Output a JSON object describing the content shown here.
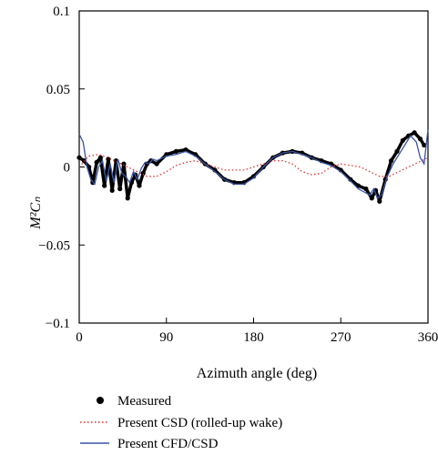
{
  "chart_data": {
    "type": "line",
    "xlabel": "Azimuth angle (deg)",
    "ylabel": "M²Cₙ",
    "xlim": [
      0,
      360
    ],
    "ylim": [
      -0.1,
      0.1
    ],
    "x_ticks": [
      0,
      90,
      180,
      270,
      360
    ],
    "x_tick_labels": [
      "0",
      "90",
      "180",
      "270",
      "360"
    ],
    "y_ticks": [
      0.1,
      0.05,
      0,
      -0.05,
      -0.1
    ],
    "y_tick_labels": [
      "0.1",
      "0.05",
      "0",
      "−0.05",
      "−0.1"
    ],
    "grid": false,
    "legend_position": "bottom",
    "series": [
      {
        "name": "Measured",
        "style": "dots",
        "color": "#000000",
        "x": [
          0,
          5,
          10,
          14,
          18,
          22,
          26,
          30,
          34,
          38,
          42,
          46,
          50,
          54,
          58,
          62,
          66,
          70,
          74,
          80,
          90,
          100,
          110,
          120,
          130,
          140,
          150,
          160,
          170,
          180,
          190,
          200,
          210,
          220,
          230,
          240,
          250,
          260,
          270,
          280,
          288,
          296,
          302,
          306,
          310,
          316,
          322,
          328,
          334,
          340,
          346,
          352,
          356
        ],
        "y": [
          0.006,
          0.004,
          0.0,
          -0.01,
          0.003,
          0.006,
          -0.012,
          0.005,
          -0.015,
          0.004,
          -0.014,
          0.002,
          -0.02,
          -0.01,
          -0.005,
          -0.012,
          -0.004,
          0.002,
          0.004,
          0.002,
          0.008,
          0.01,
          0.011,
          0.008,
          0.002,
          -0.002,
          -0.008,
          -0.01,
          -0.01,
          -0.006,
          0.0,
          0.006,
          0.009,
          0.01,
          0.009,
          0.006,
          0.004,
          0.002,
          -0.002,
          -0.008,
          -0.012,
          -0.014,
          -0.02,
          -0.015,
          -0.022,
          -0.008,
          0.004,
          0.01,
          0.017,
          0.02,
          0.022,
          0.018,
          0.014
        ]
      },
      {
        "name": "Present CSD (rolled-up wake)",
        "style": "dotted",
        "color": "#e0312d",
        "x": [
          0,
          10,
          20,
          30,
          40,
          50,
          60,
          70,
          80,
          90,
          100,
          110,
          120,
          130,
          140,
          150,
          160,
          170,
          180,
          190,
          200,
          210,
          220,
          230,
          240,
          250,
          260,
          270,
          280,
          290,
          300,
          310,
          320,
          330,
          340,
          350,
          360
        ],
        "y": [
          0.0,
          0.007,
          0.008,
          0.006,
          0.003,
          0.0,
          -0.003,
          -0.006,
          -0.006,
          -0.003,
          0.001,
          0.003,
          0.004,
          0.002,
          0.0,
          -0.002,
          -0.002,
          -0.002,
          0.0,
          0.002,
          0.004,
          0.004,
          0.002,
          -0.003,
          -0.005,
          -0.004,
          0.0,
          0.002,
          0.001,
          0.0,
          -0.003,
          -0.006,
          -0.006,
          -0.003,
          0.0,
          0.003,
          0.006
        ]
      },
      {
        "name": "Present CFD/CSD",
        "style": "solid",
        "color": "#3955a3",
        "x": [
          0,
          4,
          8,
          12,
          16,
          20,
          24,
          28,
          32,
          36,
          40,
          44,
          48,
          52,
          56,
          60,
          64,
          68,
          72,
          76,
          80,
          90,
          100,
          110,
          120,
          130,
          140,
          150,
          160,
          170,
          180,
          190,
          200,
          210,
          220,
          230,
          240,
          250,
          260,
          270,
          280,
          288,
          294,
          300,
          304,
          308,
          312,
          318,
          324,
          330,
          336,
          342,
          348,
          352,
          356,
          360
        ],
        "y": [
          0.021,
          0.016,
          0.0,
          -0.008,
          -0.011,
          0.0,
          0.004,
          -0.009,
          0.002,
          -0.01,
          0.005,
          -0.004,
          -0.006,
          -0.01,
          -0.003,
          -0.008,
          -0.001,
          0.003,
          0.002,
          0.005,
          0.004,
          0.007,
          0.008,
          0.01,
          0.007,
          0.002,
          -0.003,
          -0.008,
          -0.011,
          -0.011,
          -0.007,
          0.0,
          0.006,
          0.009,
          0.01,
          0.008,
          0.006,
          0.003,
          0.001,
          -0.003,
          -0.009,
          -0.014,
          -0.016,
          -0.018,
          -0.014,
          -0.02,
          -0.018,
          -0.006,
          0.002,
          0.008,
          0.014,
          0.02,
          0.016,
          0.006,
          0.002,
          0.024
        ]
      }
    ]
  }
}
